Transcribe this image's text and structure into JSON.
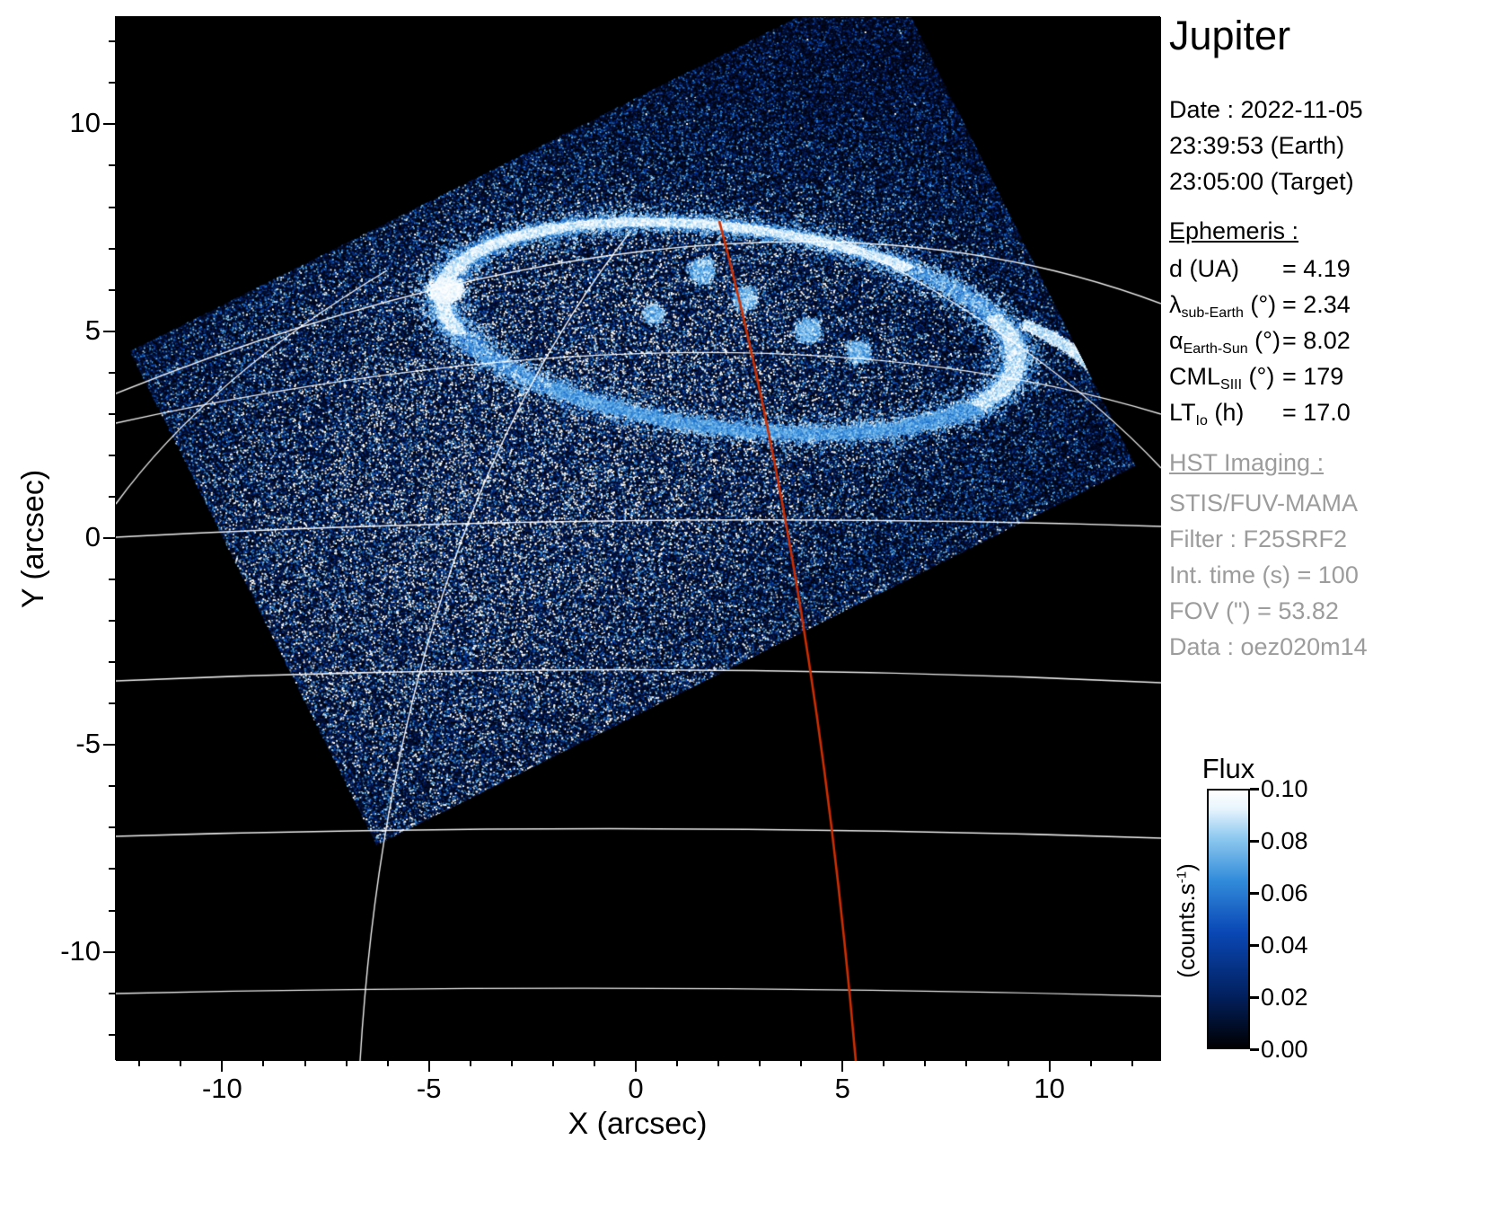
{
  "header": {
    "title": "Jupiter"
  },
  "datetime": {
    "date": "Date : 2022-11-05",
    "earth": "23:39:53 (Earth)",
    "target": "23:05:00 (Target)"
  },
  "ephemeris": {
    "heading": "Ephemeris :",
    "items": [
      {
        "symbol": "d",
        "sub": "",
        "unit": "(UA)",
        "value": "= 4.19"
      },
      {
        "symbol": "λ",
        "sub": "sub-Earth",
        "unit": "(°)",
        "value": "= 2.34"
      },
      {
        "symbol": "α",
        "sub": "Earth-Sun",
        "unit": "(°)",
        "value": "= 8.02"
      },
      {
        "symbol": "CML",
        "sub": "SIII",
        "unit": "(°)",
        "value": "= 179"
      },
      {
        "symbol": "LT",
        "sub": "Io",
        "unit": "(h)",
        "value": "= 17.0"
      }
    ]
  },
  "hst": {
    "heading": "HST Imaging :",
    "lines": [
      "STIS/FUV-MAMA",
      "Filter : F25SRF2",
      "Int. time (s) = 100",
      "FOV (\") = 53.82",
      "Data : oez020m14"
    ]
  },
  "colorbar": {
    "title": "Flux",
    "unit_prefix": "(counts.s",
    "unit_sup": "-1",
    "unit_suffix": ")",
    "ticks": [
      "0.10",
      "0.08",
      "0.06",
      "0.04",
      "0.02",
      "0.00"
    ]
  },
  "chart_data": {
    "type": "heatmap",
    "title": "Jupiter",
    "xlabel": "X (arcsec)",
    "ylabel": "Y (arcsec)",
    "xlim": [
      -12.6,
      12.7
    ],
    "ylim": [
      -12.7,
      12.5
    ],
    "x_ticks": [
      -10,
      -5,
      0,
      5,
      10
    ],
    "y_ticks": [
      10,
      5,
      0,
      -5,
      -10
    ],
    "grid": true,
    "colorbar": {
      "label": "Flux",
      "unit": "counts.s^-1",
      "min": 0.0,
      "max": 0.1,
      "ticks": [
        0.1,
        0.08,
        0.06,
        0.04,
        0.02,
        0.0
      ]
    },
    "description": "HST STIS/FUV-MAMA far-UV image of Jupiter's northern aurora: speckled blue flux map inside a rotated square field of view on black background, bright white auroral oval around the magnetic pole with a kinked tail on the dusk side, white planetocentric latitude/longitude grid lines, red line marking the central meridian (CML SIII = 179°).",
    "features": {
      "background": "#000000",
      "grid_color": "#ffffff",
      "cml_meridian_color": "#cf2e00",
      "fov_rotation_deg": -26.6,
      "fov_arcsec": 53.82,
      "auroral_oval_center_arcsec": [
        2.2,
        5.1
      ],
      "auroral_oval_radii_arcsec": [
        7.0,
        2.4
      ]
    }
  }
}
